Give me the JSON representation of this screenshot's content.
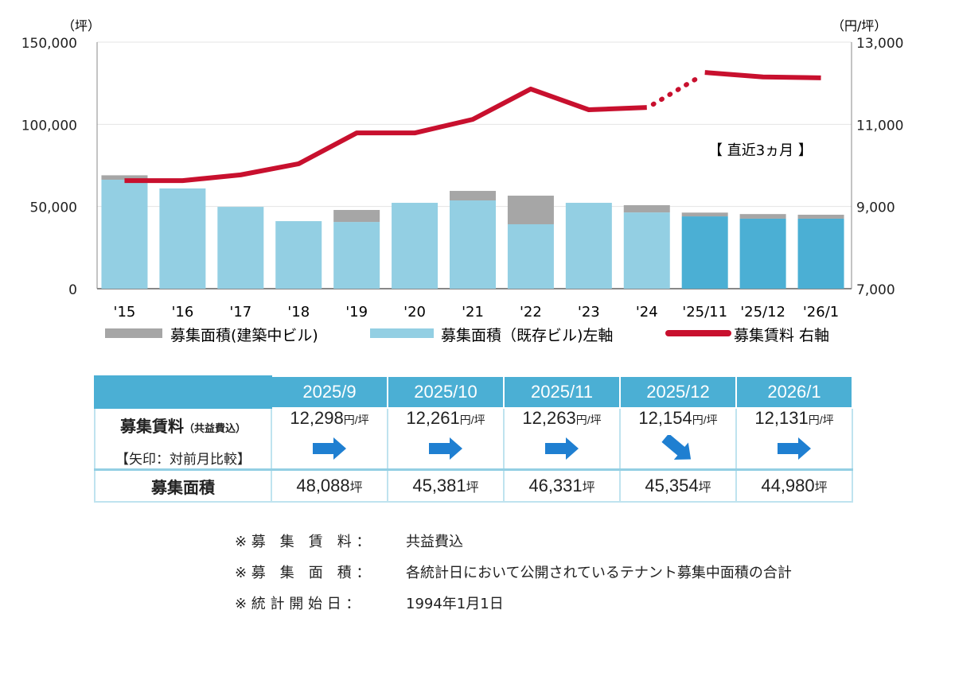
{
  "chart_data": {
    "type": "bar+line",
    "left_unit": "（坪）",
    "right_unit": "（円/坪）",
    "categories": [
      "'15",
      "'16",
      "'17",
      "'18",
      "'19",
      "'20",
      "'21",
      "'22",
      "'23",
      "'24",
      "'25/11",
      "'25/12",
      "'26/1"
    ],
    "left_ylim": [
      0,
      150000
    ],
    "left_ticks": [
      "0",
      "50,000",
      "100,000",
      "150,000"
    ],
    "right_ylim": [
      7000,
      13000
    ],
    "right_ticks": [
      "7,000",
      "9,000",
      "11,000",
      "13,000"
    ],
    "series": [
      {
        "name": "募集面積(建築中ビル)",
        "type": "bar",
        "color": "#a6a6a6",
        "values": [
          2700,
          0,
          0,
          0,
          7300,
          0,
          5800,
          17400,
          0,
          4400,
          2300,
          2800,
          2400
        ]
      },
      {
        "name": "募集面積（既存ビル)左軸",
        "type": "bar",
        "color": "#93cfe3",
        "recent_color": "#4bafd4",
        "values": [
          66300,
          61000,
          49800,
          41100,
          40600,
          52250,
          53700,
          39200,
          52250,
          46400,
          44000,
          42600,
          42600
        ]
      },
      {
        "name": "募集賃料 右軸",
        "type": "line",
        "color": "#c8102e",
        "values": [
          9630,
          9630,
          9770,
          10040,
          10790,
          10790,
          11120,
          11860,
          11355,
          11410,
          12263,
          12154,
          12131
        ]
      }
    ],
    "annotation": "【 直近3ヵ月 】",
    "grid": "horizontal",
    "legend": "bottom"
  },
  "table": {
    "columns": [
      "2025/9",
      "2025/10",
      "2025/11",
      "2025/12",
      "2026/1"
    ],
    "rent_label": "募集賃料",
    "rent_sub": "（共益費込）",
    "arrow_label": "【矢印：対前月比較】",
    "rent": [
      "12,298",
      "12,261",
      "12,263",
      "12,154",
      "12,131"
    ],
    "rent_unit": "円/坪",
    "arrows": [
      "right",
      "right",
      "right",
      "down-right",
      "right"
    ],
    "area_label": "募集面積",
    "area": [
      "48,088",
      "45,381",
      "46,331",
      "45,354",
      "44,980"
    ],
    "area_unit": "坪"
  },
  "notes": [
    {
      "mark": "※ 募　集　賃　料 ：",
      "text": "共益費込"
    },
    {
      "mark": "※ 募　集　面　積 ：",
      "text": "各統計日において公開されているテナント募集中面積の合計"
    },
    {
      "mark": "※ 統 計 開 始 日 ：",
      "text": "1994年1月1日"
    }
  ]
}
